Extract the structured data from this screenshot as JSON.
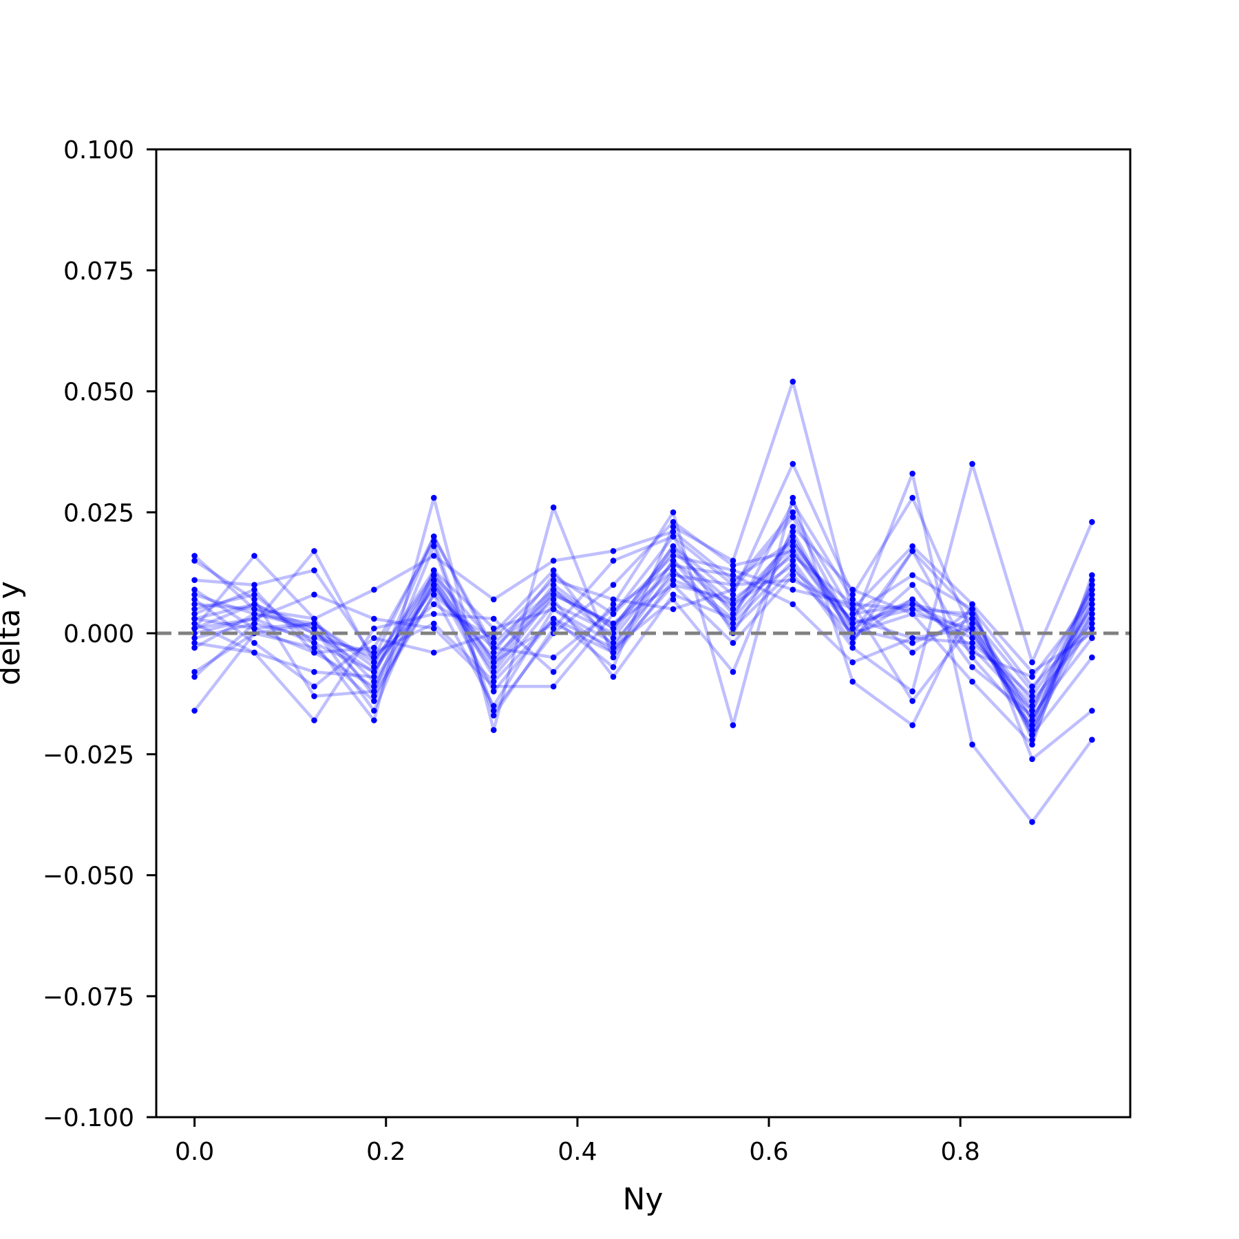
{
  "chart_data": {
    "type": "line",
    "xlabel": "Ny",
    "ylabel": "delta y",
    "xlim": [
      -0.04,
      0.9775
    ],
    "ylim": [
      -0.1,
      0.1
    ],
    "x_ticks": [
      0.0,
      0.2,
      0.4,
      0.6,
      0.8
    ],
    "x_tick_labels": [
      "0.0",
      "0.2",
      "0.4",
      "0.6",
      "0.8"
    ],
    "y_ticks": [
      -0.1,
      -0.075,
      -0.05,
      -0.025,
      0.0,
      0.025,
      0.05,
      0.075,
      0.1
    ],
    "y_tick_labels": [
      "−0.100",
      "−0.075",
      "−0.050",
      "−0.025",
      "0.000",
      "0.025",
      "0.050",
      "0.075",
      "0.100"
    ],
    "reference_line": {
      "y": 0.0,
      "style": "dashed",
      "color": "#808080"
    },
    "grid": false,
    "legend": false,
    "line_color": "#0000ff",
    "x": [
      0.0,
      0.0625,
      0.125,
      0.1875,
      0.25,
      0.3125,
      0.375,
      0.4375,
      0.5,
      0.5625,
      0.625,
      0.6875,
      0.75,
      0.8125,
      0.875,
      0.9375
    ],
    "series": [
      {
        "values": [
          0.016,
          0.005,
          0.0,
          -0.008,
          0.012,
          -0.002,
          0.009,
          -0.001,
          0.015,
          0.005,
          0.018,
          0.002,
          0.005,
          -0.001,
          -0.015,
          0.006
        ]
      },
      {
        "values": [
          0.011,
          0.01,
          0.013,
          -0.005,
          0.02,
          -0.004,
          0.012,
          0.004,
          0.02,
          0.01,
          0.025,
          0.004,
          0.006,
          0.003,
          -0.012,
          0.009
        ]
      },
      {
        "values": [
          0.008,
          0.004,
          0.002,
          -0.01,
          0.01,
          -0.008,
          0.008,
          0.002,
          0.013,
          0.002,
          0.015,
          -0.002,
          0.017,
          0.004,
          -0.018,
          0.004
        ]
      },
      {
        "values": [
          0.003,
          0.006,
          0.001,
          -0.012,
          0.008,
          -0.015,
          0.005,
          -0.004,
          0.01,
          -0.002,
          0.012,
          0.0,
          0.004,
          0.001,
          -0.02,
          0.003
        ]
      },
      {
        "values": [
          -0.009,
          0.002,
          0.017,
          -0.006,
          0.013,
          -0.006,
          0.01,
          0.001,
          0.018,
          0.008,
          0.035,
          0.008,
          0.028,
          0.0,
          -0.016,
          0.01
        ]
      },
      {
        "values": [
          -0.016,
          0.0,
          -0.003,
          -0.014,
          0.011,
          -0.012,
          0.003,
          -0.007,
          0.022,
          0.015,
          0.052,
          0.004,
          0.012,
          0.005,
          -0.022,
          0.008
        ]
      },
      {
        "values": [
          0.001,
          0.016,
          0.003,
          0.009,
          0.016,
          0.007,
          0.015,
          0.017,
          0.021,
          0.011,
          0.019,
          0.002,
          0.033,
          -0.023,
          -0.039,
          -0.022
        ]
      },
      {
        "values": [
          0.005,
          0.008,
          -0.002,
          -0.018,
          0.028,
          -0.02,
          0.026,
          -0.005,
          0.011,
          0.006,
          0.014,
          -0.003,
          -0.012,
          0.035,
          -0.006,
          0.023
        ]
      },
      {
        "values": [
          -0.002,
          -0.004,
          -0.018,
          0.001,
          0.004,
          0.003,
          -0.008,
          0.006,
          0.025,
          -0.019,
          0.028,
          -0.01,
          -0.019,
          0.006,
          -0.026,
          -0.016
        ]
      },
      {
        "values": [
          0.007,
          -0.002,
          -0.011,
          -0.001,
          -0.004,
          0.0,
          0.013,
          -0.003,
          0.007,
          -0.008,
          0.022,
          0.009,
          0.004,
          -0.01,
          -0.023,
          0.012
        ]
      },
      {
        "values": [
          0.001,
          0.003,
          0.008,
          0.003,
          0.001,
          -0.011,
          -0.011,
          0.004,
          0.016,
          0.013,
          0.009,
          0.006,
          -0.014,
          0.002,
          -0.021,
          -0.005
        ]
      },
      {
        "values": [
          0.015,
          0.007,
          -0.013,
          -0.012,
          0.018,
          -0.017,
          0.001,
          0.015,
          0.02,
          0.0,
          0.021,
          -0.001,
          0.007,
          -0.004,
          -0.009,
          0.007
        ]
      },
      {
        "values": [
          0.009,
          0.001,
          0.002,
          -0.007,
          0.009,
          -0.005,
          0.007,
          -0.009,
          0.008,
          0.003,
          0.027,
          0.007,
          -0.004,
          0.005,
          -0.011,
          0.002
        ]
      },
      {
        "values": [
          0.004,
          0.009,
          -0.004,
          -0.003,
          0.019,
          -0.016,
          0.0,
          0.01,
          0.023,
          0.014,
          0.017,
          0.0,
          0.017,
          -0.005,
          -0.019,
          0.011
        ]
      },
      {
        "values": [
          -0.003,
          0.004,
          0.001,
          -0.016,
          0.013,
          0.001,
          0.005,
          -0.002,
          0.012,
          0.01,
          0.011,
          0.005,
          0.018,
          0.006,
          -0.008,
          0.0
        ]
      },
      {
        "values": [
          0.002,
          -0.004,
          -0.008,
          -0.009,
          0.02,
          -0.003,
          -0.005,
          0.005,
          0.014,
          0.012,
          0.006,
          -0.006,
          -0.001,
          -0.002,
          -0.013,
          0.005
        ]
      },
      {
        "values": [
          0.001,
          0.006,
          0.0,
          -0.005,
          0.006,
          -0.001,
          0.011,
          0.007,
          0.005,
          0.009,
          0.024,
          0.001,
          -0.002,
          0.003,
          -0.021,
          0.01
        ]
      },
      {
        "values": [
          0.003,
          0.001,
          -0.004,
          -0.011,
          0.01,
          -0.007,
          0.009,
          0.001,
          0.018,
          0.004,
          0.02,
          -0.001,
          0.01,
          -0.007,
          -0.017,
          -0.001
        ]
      },
      {
        "values": [
          -0.001,
          0.002,
          -0.001,
          -0.004,
          0.002,
          -0.01,
          0.003,
          -0.003,
          0.015,
          0.001,
          0.013,
          0.003,
          -0.001,
          0.001,
          -0.014,
          0.001
        ]
      },
      {
        "values": [
          0.006,
          0.005,
          0.003,
          -0.013,
          0.008,
          -0.003,
          0.008,
          0.002,
          0.01,
          0.007,
          0.016,
          0.006,
          0.005,
          0.004,
          -0.02,
          0.009
        ]
      },
      {
        "values": [
          0.0,
          0.003,
          -0.002,
          -0.008,
          0.011,
          -0.006,
          0.002,
          -0.004,
          0.013,
          0.003,
          0.017,
          0.001,
          0.007,
          -0.003,
          -0.016,
          0.004
        ]
      },
      {
        "values": [
          -0.008,
          0.0,
          0.002,
          -0.006,
          0.012,
          -0.009,
          0.006,
          0.0,
          0.017,
          0.006,
          0.019,
          0.002,
          0.006,
          0.0,
          -0.018,
          0.006
        ]
      }
    ]
  }
}
